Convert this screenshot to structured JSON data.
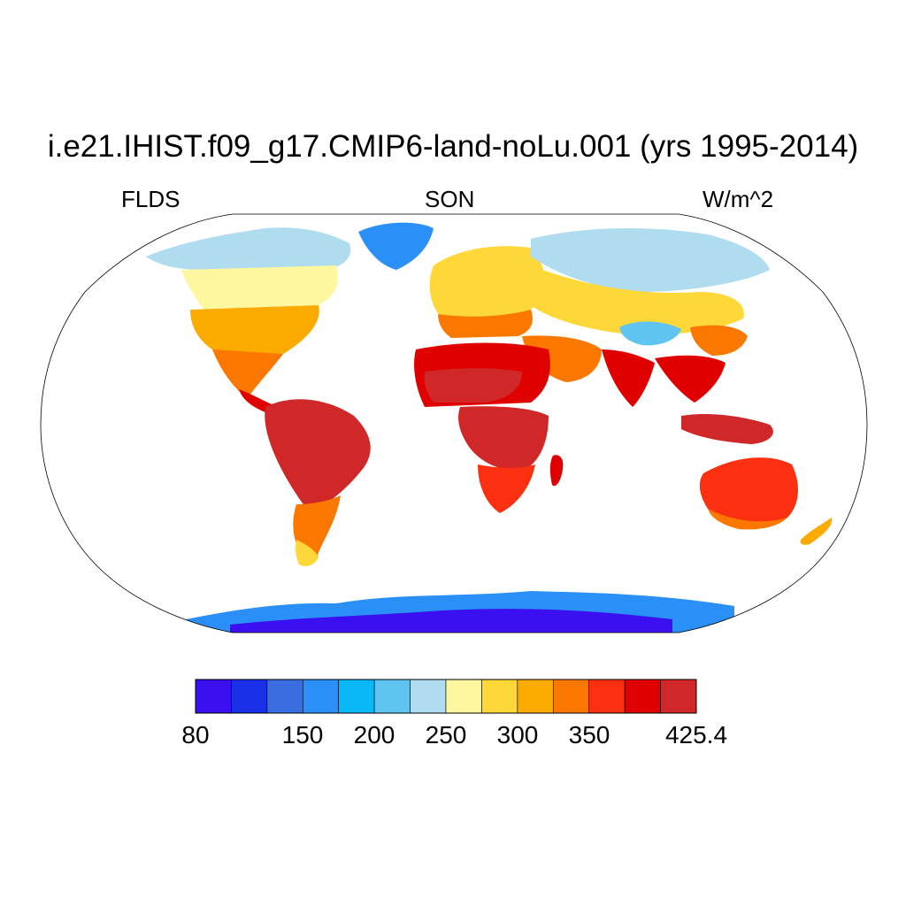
{
  "title": "i.e21.IHIST.f09_g17.CMIP6-land-noLu.001 (yrs 1995-2014)",
  "left_label": "FLDS",
  "center_label": "SON",
  "right_label": "W/m^2",
  "colorbar": {
    "colors": [
      "#3a10f0",
      "#1a30e8",
      "#3a6ee0",
      "#2a90f8",
      "#0ab8f8",
      "#60c4f0",
      "#b0dcf0",
      "#fff7a0",
      "#fdd838",
      "#fbab00",
      "#fb7800",
      "#fb3010",
      "#e00000",
      "#d02828"
    ],
    "labels": [
      "80",
      "150",
      "200",
      "250",
      "300",
      "350",
      "425.4"
    ]
  },
  "chart_data": {
    "type": "heatmap",
    "projection": "Robinson",
    "variable": "FLDS",
    "season": "SON",
    "units": "W/m^2",
    "color_range": [
      80,
      425.4
    ],
    "regions": [
      {
        "name": "Antarctica",
        "band": "80-130"
      },
      {
        "name": "Greenland",
        "band": "175-225"
      },
      {
        "name": "Northern Canada / Arctic",
        "band": "225-275"
      },
      {
        "name": "Siberia",
        "band": "225-275"
      },
      {
        "name": "Tibetan Plateau",
        "band": "225-250"
      },
      {
        "name": "Continental United States",
        "band": "275-350"
      },
      {
        "name": "Europe",
        "band": "275-325"
      },
      {
        "name": "Central Asia",
        "band": "275-325"
      },
      {
        "name": "Sahara / North Africa",
        "band": "350-425"
      },
      {
        "name": "Amazon / South America",
        "band": "375-425"
      },
      {
        "name": "Central Africa",
        "band": "375-425"
      },
      {
        "name": "India / SE Asia",
        "band": "375-425"
      },
      {
        "name": "Australia",
        "band": "325-400"
      },
      {
        "name": "Southern Andes / Patagonia",
        "band": "250-325"
      },
      {
        "name": "New Zealand",
        "band": "300-325"
      }
    ]
  }
}
